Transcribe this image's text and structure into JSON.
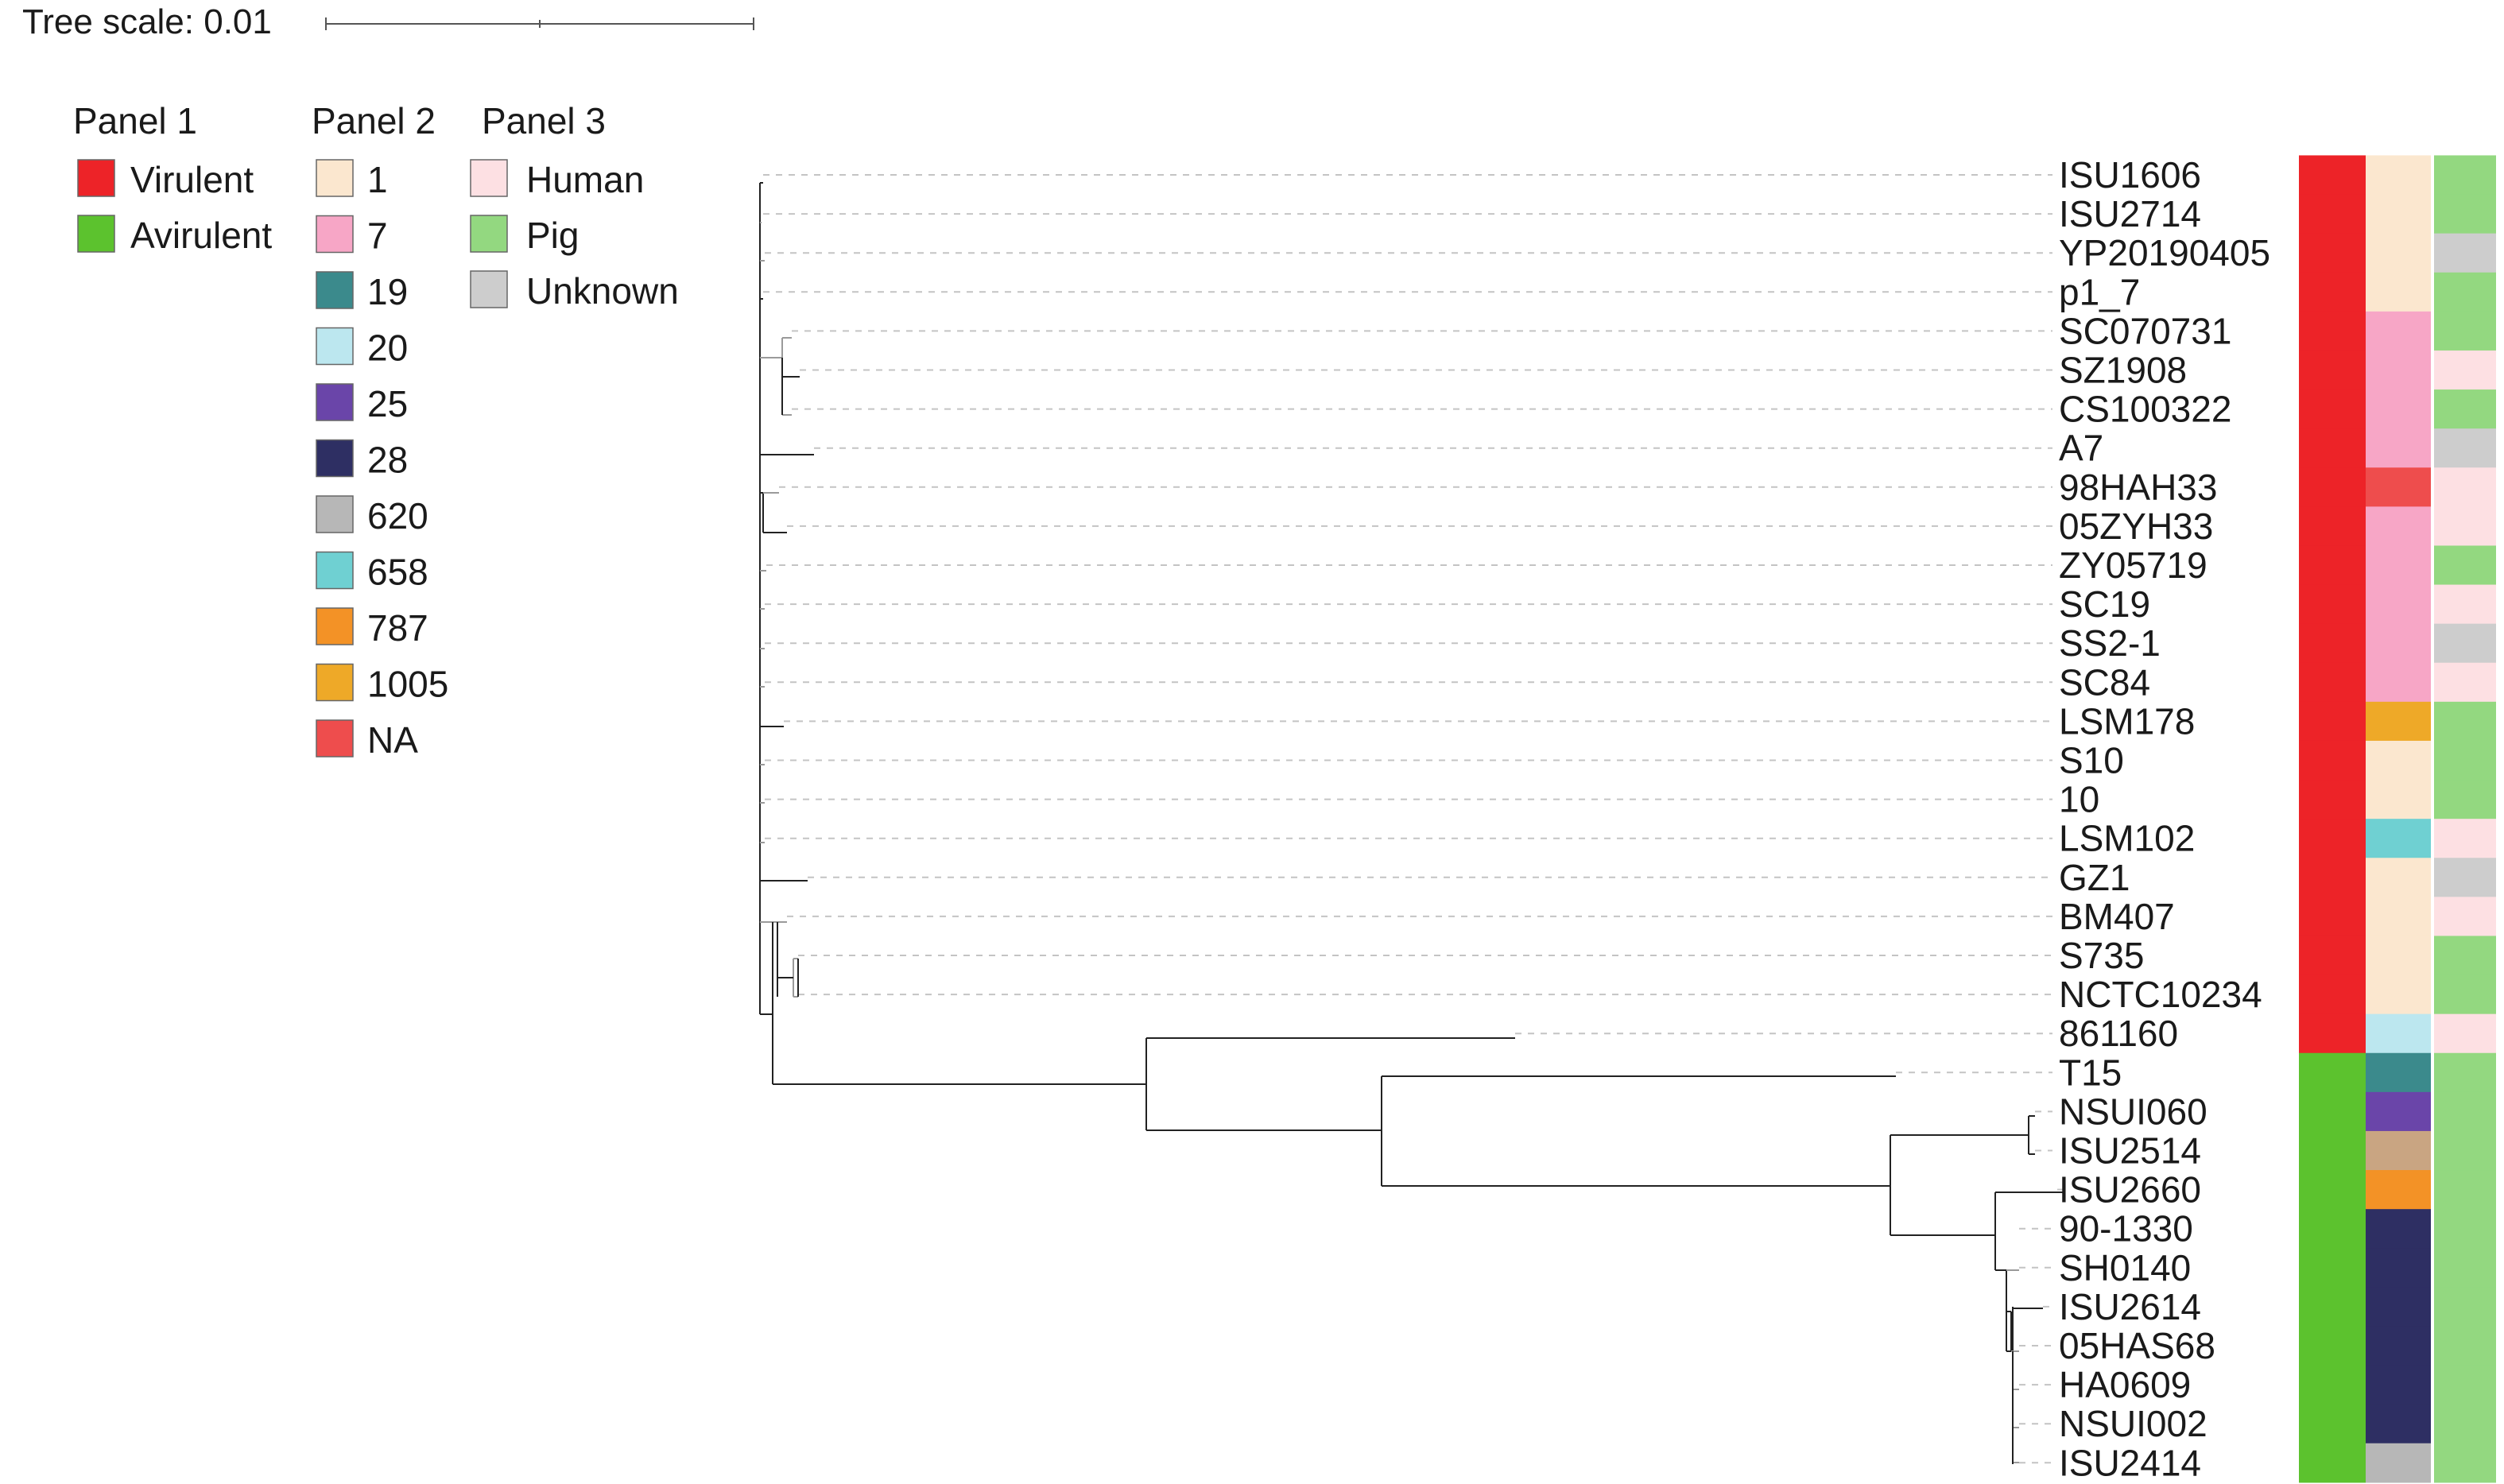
{
  "tree_scale": {
    "label": "Tree scale: 0.01"
  },
  "legend": {
    "panel1": {
      "title": "Panel 1",
      "items": [
        {
          "label": "Virulent",
          "color": "#ed2328"
        },
        {
          "label": "Avirulent",
          "color": "#5cc22e"
        }
      ]
    },
    "panel2": {
      "title": "Panel 2",
      "items": [
        {
          "label": "1",
          "color": "#fbe7cf"
        },
        {
          "label": "7",
          "color": "#f7a6c6"
        },
        {
          "label": "19",
          "color": "#3b8a8c"
        },
        {
          "label": "20",
          "color": "#bce7ef"
        },
        {
          "label": "25",
          "color": "#6a45a9"
        },
        {
          "label": "28",
          "color": "#2e2f63"
        },
        {
          "label": "620",
          "color": "#b7b7b7"
        },
        {
          "label": "658",
          "color": "#6fd0d2"
        },
        {
          "label": "787",
          "color": "#f39226"
        },
        {
          "label": "1005",
          "color": "#eea928"
        },
        {
          "label": "NA",
          "color": "#ee4d4d"
        }
      ]
    },
    "panel3": {
      "title": "Panel 3",
      "items": [
        {
          "label": "Human",
          "color": "#fde0e3"
        },
        {
          "label": "Pig",
          "color": "#93d880"
        },
        {
          "label": "Unknown",
          "color": "#cdcdcd"
        }
      ]
    }
  },
  "leaves": [
    {
      "name": "ISU1606",
      "panel1": "Virulent",
      "panel2": "1",
      "panel3": "Pig"
    },
    {
      "name": "ISU2714",
      "panel1": "Virulent",
      "panel2": "1",
      "panel3": "Pig"
    },
    {
      "name": "YP20190405",
      "panel1": "Virulent",
      "panel2": "1",
      "panel3": "Unknown"
    },
    {
      "name": "p1_7",
      "panel1": "Virulent",
      "panel2": "1",
      "panel3": "Pig"
    },
    {
      "name": "SC070731",
      "panel1": "Virulent",
      "panel2": "7",
      "panel3": "Pig"
    },
    {
      "name": "SZ1908",
      "panel1": "Virulent",
      "panel2": "7",
      "panel3": "Human"
    },
    {
      "name": "CS100322",
      "panel1": "Virulent",
      "panel2": "7",
      "panel3": "Pig"
    },
    {
      "name": "A7",
      "panel1": "Virulent",
      "panel2": "7",
      "panel3": "Unknown"
    },
    {
      "name": "98HAH33",
      "panel1": "Virulent",
      "panel2": "NA",
      "panel3": "Human"
    },
    {
      "name": "05ZYH33",
      "panel1": "Virulent",
      "panel2": "7",
      "panel3": "Human"
    },
    {
      "name": "ZY05719",
      "panel1": "Virulent",
      "panel2": "7",
      "panel3": "Pig"
    },
    {
      "name": "SC19",
      "panel1": "Virulent",
      "panel2": "7",
      "panel3": "Human"
    },
    {
      "name": "SS2-1",
      "panel1": "Virulent",
      "panel2": "7",
      "panel3": "Unknown"
    },
    {
      "name": "SC84",
      "panel1": "Virulent",
      "panel2": "7",
      "panel3": "Human"
    },
    {
      "name": "LSM178",
      "panel1": "Virulent",
      "panel2": "1005",
      "panel3": "Pig"
    },
    {
      "name": "S10",
      "panel1": "Virulent",
      "panel2": "1",
      "panel3": "Pig"
    },
    {
      "name": "10",
      "panel1": "Virulent",
      "panel2": "1",
      "panel3": "Pig"
    },
    {
      "name": "LSM102",
      "panel1": "Virulent",
      "panel2": "658",
      "panel3": "Human"
    },
    {
      "name": "GZ1",
      "panel1": "Virulent",
      "panel2": "1",
      "panel3": "Unknown"
    },
    {
      "name": "BM407",
      "panel1": "Virulent",
      "panel2": "1",
      "panel3": "Human"
    },
    {
      "name": "S735",
      "panel1": "Virulent",
      "panel2": "1",
      "panel3": "Pig"
    },
    {
      "name": "NCTC10234",
      "panel1": "Virulent",
      "panel2": "1",
      "panel3": "Pig"
    },
    {
      "name": "861160",
      "panel1": "Virulent",
      "panel2": "20",
      "panel3": "Human"
    },
    {
      "name": "T15",
      "panel1": "Avirulent",
      "panel2": "19",
      "panel3": "Pig"
    },
    {
      "name": "NSUI060",
      "panel1": "Avirulent",
      "panel2": "25",
      "panel3": "Pig"
    },
    {
      "name": "ISU2514",
      "panel1": "Avirulent",
      "panel2": "",
      "panel3": "Pig"
    },
    {
      "name": "ISU2660",
      "panel1": "Avirulent",
      "panel2": "787",
      "panel3": "Pig"
    },
    {
      "name": "90-1330",
      "panel1": "Avirulent",
      "panel2": "28",
      "panel3": "Pig"
    },
    {
      "name": "SH0140",
      "panel1": "Avirulent",
      "panel2": "28",
      "panel3": "Pig"
    },
    {
      "name": "ISU2614",
      "panel1": "Avirulent",
      "panel2": "28",
      "panel3": "Pig"
    },
    {
      "name": "05HAS68",
      "panel1": "Avirulent",
      "panel2": "28",
      "panel3": "Pig"
    },
    {
      "name": "HA0609",
      "panel1": "Avirulent",
      "panel2": "28",
      "panel3": "Pig"
    },
    {
      "name": "NSUI002",
      "panel1": "Avirulent",
      "panel2": "28",
      "panel3": "Pig"
    },
    {
      "name": "ISU2414",
      "panel1": "Avirulent",
      "panel2": "620",
      "panel3": "Pig"
    }
  ],
  "unlisted_colors": {
    "ISU2514_panel2": "#c9a582"
  }
}
